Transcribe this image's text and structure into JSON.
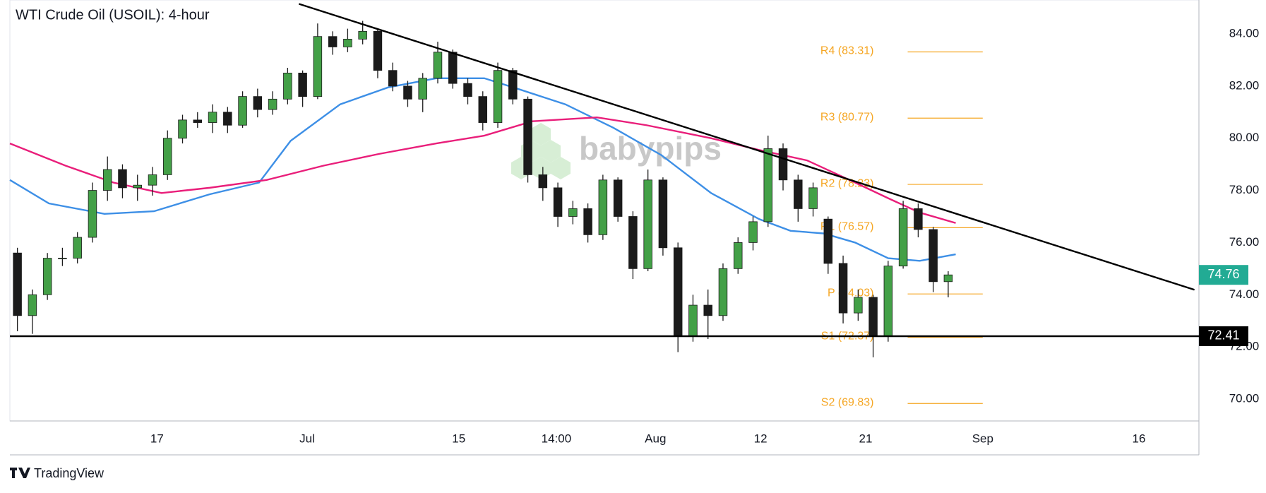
{
  "chart_data": {
    "type": "candlestick",
    "title": "WTI Crude Oil (USOIL): 4-hour",
    "watermark": "babypips",
    "footer": "TradingView",
    "up_color": "#43a047",
    "down_color": "#1b1b1b",
    "grid": false,
    "xlim": [
      0,
      79.2
    ],
    "ylim": [
      69.16,
      85.3
    ],
    "xticks": [
      {
        "value": 9.8,
        "label": "17"
      },
      {
        "value": 19.8,
        "label": "Jul"
      },
      {
        "value": 29.9,
        "label": "15"
      },
      {
        "value": 36.4,
        "label": "14:00"
      },
      {
        "value": 43.0,
        "label": "Aug"
      },
      {
        "value": 50.0,
        "label": "12"
      },
      {
        "value": 57.0,
        "label": "21"
      },
      {
        "value": 64.8,
        "label": "Sep"
      },
      {
        "value": 75.2,
        "label": "16"
      }
    ],
    "yticks": [
      {
        "value": 70,
        "label": "70.00"
      },
      {
        "value": 72,
        "label": "72.00"
      },
      {
        "value": 74,
        "label": "74.00"
      },
      {
        "value": 76,
        "label": "76.00"
      },
      {
        "value": 78,
        "label": "78.00"
      },
      {
        "value": 80,
        "label": "80.00"
      },
      {
        "value": 82,
        "label": "82.00"
      },
      {
        "value": 84,
        "label": "84.00"
      }
    ],
    "candles": {
      "x": [
        0.5,
        1.5,
        2.5,
        3.5,
        4.5,
        5.5,
        6.5,
        7.5,
        8.5,
        9.5,
        10.5,
        11.5,
        12.5,
        13.5,
        14.5,
        15.5,
        16.5,
        17.5,
        18.5,
        19.5,
        20.5,
        21.5,
        22.5,
        23.5,
        24.5,
        25.5,
        26.5,
        27.5,
        28.5,
        29.5,
        30.5,
        31.5,
        32.5,
        33.5,
        34.5,
        35.5,
        36.5,
        37.5,
        38.5,
        39.5,
        40.5,
        41.5,
        42.5,
        43.5,
        44.5,
        45.5,
        46.5,
        47.5,
        48.5,
        49.5,
        50.5,
        51.5,
        52.5,
        53.5,
        54.5,
        55.5,
        56.5,
        57.5,
        58.5,
        59.5,
        60.5,
        61.5,
        62.5
      ],
      "open": [
        75.6,
        73.2,
        74.0,
        75.4,
        75.4,
        76.2,
        78.0,
        78.8,
        78.1,
        78.2,
        78.6,
        80.0,
        80.7,
        80.6,
        81.0,
        80.5,
        81.6,
        81.1,
        81.5,
        82.5,
        81.6,
        83.9,
        83.5,
        83.8,
        84.1,
        82.6,
        82.0,
        81.5,
        82.3,
        83.3,
        82.1,
        81.6,
        80.6,
        82.6,
        81.5,
        78.6,
        78.1,
        77.0,
        77.3,
        76.3,
        78.4,
        77.0,
        75.0,
        78.4,
        75.8,
        72.4,
        73.6,
        73.2,
        75.0,
        76.0,
        76.8,
        79.6,
        78.4,
        77.3,
        76.9,
        75.2,
        73.3,
        73.9,
        72.4,
        75.1,
        77.3,
        76.5,
        74.5
      ],
      "high": [
        75.8,
        74.2,
        75.6,
        75.8,
        76.4,
        78.3,
        79.3,
        79.0,
        78.6,
        78.9,
        80.3,
        80.9,
        81.0,
        81.3,
        81.2,
        81.8,
        81.9,
        81.8,
        82.7,
        82.6,
        84.4,
        84.1,
        84.2,
        84.5,
        84.2,
        82.9,
        82.2,
        82.5,
        83.7,
        83.4,
        82.3,
        81.8,
        82.9,
        82.7,
        81.6,
        78.9,
        78.3,
        77.6,
        77.5,
        78.6,
        78.5,
        77.2,
        78.8,
        78.5,
        76.0,
        74.0,
        74.2,
        75.2,
        76.2,
        77.0,
        80.1,
        79.8,
        78.6,
        78.3,
        77.0,
        75.5,
        74.2,
        74.0,
        75.3,
        77.6,
        77.5,
        76.6,
        74.9
      ],
      "low": [
        72.6,
        72.5,
        73.8,
        75.1,
        75.2,
        76.0,
        77.6,
        77.7,
        77.6,
        77.8,
        78.4,
        79.8,
        80.4,
        80.2,
        80.2,
        80.4,
        80.8,
        80.9,
        81.3,
        81.2,
        81.5,
        83.2,
        83.3,
        83.6,
        82.3,
        81.8,
        81.2,
        81.0,
        82.1,
        81.9,
        81.3,
        80.3,
        80.4,
        81.3,
        78.3,
        77.6,
        76.6,
        76.7,
        76.0,
        76.1,
        76.8,
        74.6,
        74.9,
        75.5,
        71.8,
        72.2,
        72.3,
        73.0,
        74.8,
        75.7,
        76.6,
        78.0,
        76.8,
        77.0,
        74.8,
        72.9,
        73.0,
        71.6,
        72.2,
        75.0,
        76.2,
        74.1,
        73.9
      ],
      "close": [
        73.2,
        74.0,
        75.4,
        75.4,
        76.2,
        78.0,
        78.8,
        78.1,
        78.2,
        78.6,
        80.0,
        80.7,
        80.6,
        81.0,
        80.5,
        81.6,
        81.1,
        81.5,
        82.5,
        81.6,
        83.9,
        83.5,
        83.8,
        84.1,
        82.6,
        82.0,
        81.5,
        82.3,
        83.3,
        82.1,
        81.6,
        80.6,
        82.6,
        81.5,
        78.6,
        78.1,
        77.0,
        77.3,
        76.3,
        78.4,
        77.0,
        75.0,
        78.4,
        75.8,
        72.4,
        73.6,
        73.2,
        75.0,
        76.0,
        76.8,
        79.6,
        78.4,
        77.3,
        78.1,
        75.2,
        73.3,
        73.9,
        72.4,
        75.1,
        77.3,
        76.5,
        74.5,
        74.76
      ]
    },
    "moving_averages": [
      {
        "color": "#3d8fe6",
        "x": [
          0,
          2.6,
          6.3,
          9.6,
          13.3,
          16.6,
          18.7,
          22.0,
          25.2,
          28.4,
          31.6,
          33.8,
          37.0,
          40.2,
          43.4,
          46.7,
          49.9,
          52.0,
          54.2,
          56.3,
          58.5,
          60.6,
          63.0
        ],
        "values": [
          78.4,
          77.5,
          77.1,
          77.2,
          77.85,
          78.3,
          79.9,
          81.3,
          81.95,
          82.3,
          82.3,
          81.9,
          81.3,
          80.4,
          79.35,
          77.9,
          76.9,
          76.45,
          76.35,
          76.0,
          75.4,
          75.3,
          75.55
        ]
      },
      {
        "color": "#e91e7a",
        "x": [
          0,
          3.7,
          6.9,
          10.1,
          13.3,
          17.1,
          20.9,
          24.6,
          28.4,
          31.6,
          34.8,
          39.1,
          42.4,
          46.7,
          49.9,
          53.1,
          56.3,
          58.5,
          60.6,
          63.0
        ],
        "values": [
          79.8,
          78.95,
          78.3,
          77.9,
          78.1,
          78.4,
          78.95,
          79.4,
          79.8,
          80.1,
          80.65,
          80.8,
          80.5,
          80.0,
          79.55,
          79.15,
          78.3,
          77.7,
          77.15,
          76.75
        ]
      }
    ],
    "trendline": {
      "x": [
        19.25,
        78.9
      ],
      "values": [
        85.15,
        74.19
      ],
      "color": "#000000"
    },
    "support": {
      "value": 72.41,
      "color": "#000000"
    },
    "last_price_color": "#22ab94",
    "pivot_color": "#f5a623",
    "pivot_x": [
      59.8,
      64.8
    ],
    "pivots": [
      {
        "label": "R4 (83.31)",
        "value": 83.31
      },
      {
        "label": "R3 (80.77)",
        "value": 80.77
      },
      {
        "label": "R2 (78.23)",
        "value": 78.23
      },
      {
        "label": "R1 (76.57)",
        "value": 76.57
      },
      {
        "label": "P (74.03)",
        "value": 74.03
      },
      {
        "label": "S1 (72.37)",
        "value": 72.37
      },
      {
        "label": "S2 (69.83)",
        "value": 69.83
      }
    ]
  }
}
